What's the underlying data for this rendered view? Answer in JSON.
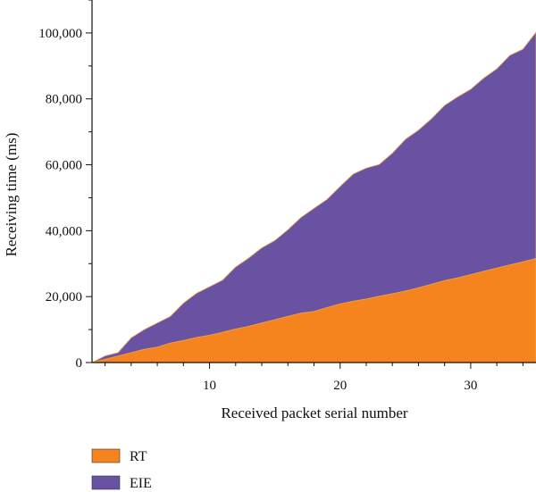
{
  "chart_data": {
    "type": "area",
    "stacked": true,
    "xlabel": "Received packet serial number",
    "ylabel": "Receiving time (ms)",
    "xlim": [
      1,
      35
    ],
    "ylim": [
      0,
      110000
    ],
    "xticks": [
      10,
      20,
      30
    ],
    "yticks": [
      0,
      20000,
      40000,
      60000,
      80000,
      100000
    ],
    "xtick_labels": [
      "10",
      "20",
      "30"
    ],
    "ytick_labels": [
      "0",
      "20,000",
      "40,000",
      "60,000",
      "80,000",
      "100,000"
    ],
    "x": [
      1,
      2,
      3,
      4,
      5,
      6,
      7,
      8,
      9,
      10,
      11,
      12,
      13,
      14,
      15,
      16,
      17,
      18,
      19,
      20,
      21,
      22,
      23,
      24,
      25,
      26,
      27,
      28,
      29,
      30,
      31,
      32,
      33,
      34,
      35
    ],
    "series": [
      {
        "name": "RT",
        "color": "#f5841f",
        "values": [
          0,
          1000,
          2000,
          3000,
          4000,
          4700,
          5900,
          6700,
          7600,
          8300,
          9200,
          10200,
          11000,
          12000,
          13000,
          14000,
          15000,
          15500,
          16700,
          17800,
          18600,
          19300,
          20100,
          20900,
          21700,
          22700,
          23800,
          24900,
          25700,
          26700,
          27700,
          28700,
          29600,
          30600,
          31600
        ]
      },
      {
        "name": "EIE",
        "color": "#6a52a3",
        "values": [
          0,
          1000,
          1000,
          4500,
          6000,
          7300,
          8100,
          11300,
          13400,
          14700,
          15800,
          18800,
          20700,
          22800,
          24000,
          26300,
          29000,
          31300,
          32800,
          35600,
          38600,
          39700,
          40000,
          42600,
          46000,
          47800,
          50200,
          53100,
          54900,
          56200,
          58600,
          60400,
          63600,
          64500,
          68600
        ]
      }
    ],
    "legend": {
      "placement": "bottom-left",
      "entries": [
        "RT",
        "EIE"
      ]
    },
    "grid": false
  }
}
